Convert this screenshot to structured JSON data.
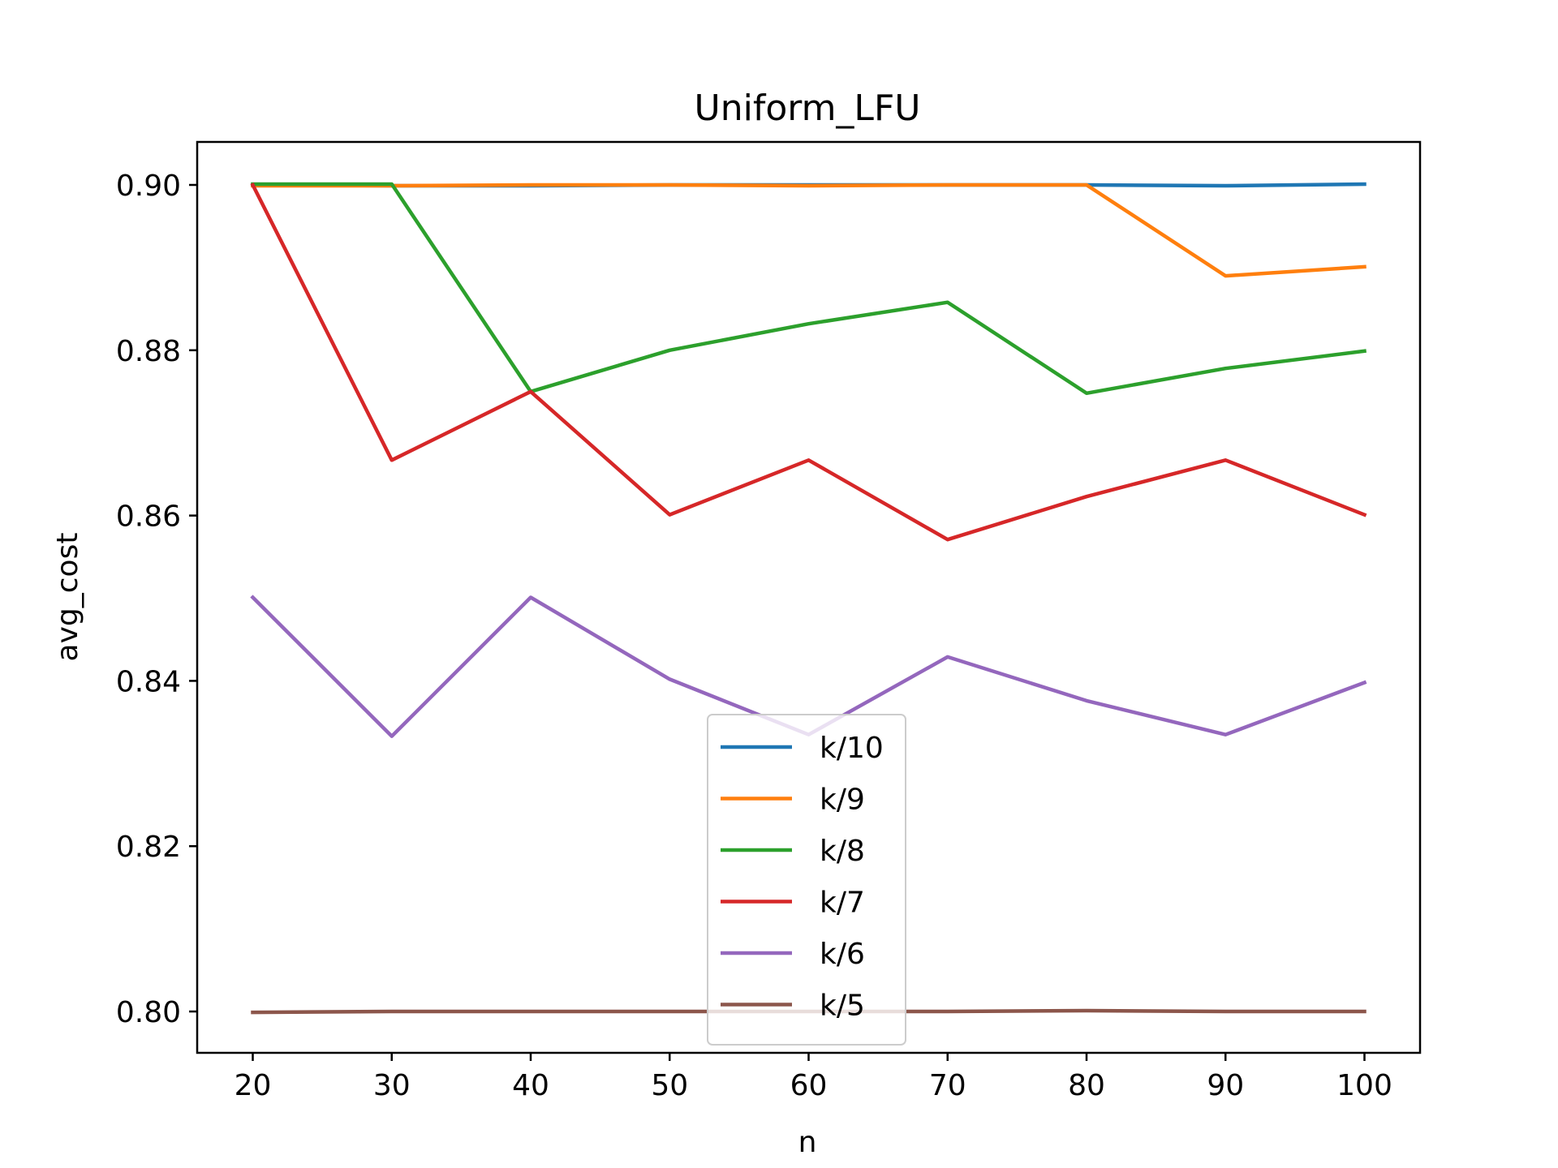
{
  "chart_data": {
    "type": "line",
    "title": "Uniform_LFU",
    "xlabel": "n",
    "ylabel": "avg_cost",
    "x": [
      20,
      30,
      40,
      50,
      60,
      70,
      80,
      90,
      100
    ],
    "xticks": [
      20,
      30,
      40,
      50,
      60,
      70,
      80,
      90,
      100
    ],
    "xtick_labels": [
      "20",
      "30",
      "40",
      "50",
      "60",
      "70",
      "80",
      "90",
      "100"
    ],
    "yticks": [
      0.8,
      0.82,
      0.84,
      0.86,
      0.88,
      0.9
    ],
    "ytick_labels": [
      "0.80",
      "0.82",
      "0.84",
      "0.86",
      "0.88",
      "0.90"
    ],
    "xlim": [
      16,
      104
    ],
    "ylim": [
      0.795,
      0.9052
    ],
    "grid": false,
    "legend_position": "lower-center",
    "series": [
      {
        "name": "k/10",
        "color": "#1f77b4",
        "values": [
          0.9,
          0.8999,
          0.8999,
          0.9,
          0.9,
          0.9,
          0.9,
          0.8999,
          0.9001
        ]
      },
      {
        "name": "k/9",
        "color": "#ff7f0e",
        "values": [
          0.8999,
          0.8999,
          0.9,
          0.9,
          0.8999,
          0.9,
          0.9,
          0.889,
          0.8901
        ]
      },
      {
        "name": "k/8",
        "color": "#2ca02c",
        "values": [
          0.9001,
          0.9001,
          0.875,
          0.88,
          0.8832,
          0.8858,
          0.8748,
          0.8778,
          0.8799
        ]
      },
      {
        "name": "k/7",
        "color": "#d62728",
        "values": [
          0.9,
          0.8667,
          0.875,
          0.8601,
          0.8667,
          0.8571,
          0.8623,
          0.8667,
          0.8601
        ]
      },
      {
        "name": "k/6",
        "color": "#9467bd",
        "values": [
          0.8501,
          0.8333,
          0.8501,
          0.8402,
          0.8335,
          0.8429,
          0.8376,
          0.8335,
          0.8398
        ]
      },
      {
        "name": "k/5",
        "color": "#8c564b",
        "values": [
          0.7999,
          0.8,
          0.8,
          0.8,
          0.8,
          0.8,
          0.8001,
          0.8,
          0.8
        ]
      }
    ]
  }
}
